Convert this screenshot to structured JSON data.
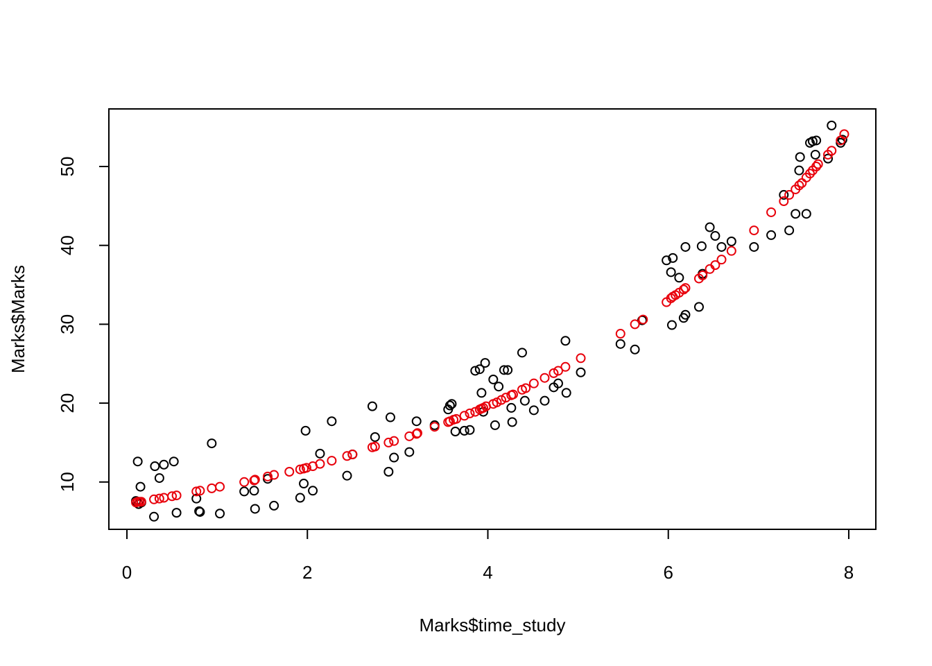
{
  "chart_data": {
    "type": "scatter",
    "title": "",
    "xlabel": "Marks$time_study",
    "ylabel": "Marks$Marks",
    "xlim": [
      -0.2,
      8.3
    ],
    "ylim": [
      4.0,
      57.3
    ],
    "xticks": [
      0,
      2,
      4,
      6,
      8
    ],
    "yticks": [
      10,
      20,
      30,
      40,
      50
    ],
    "grid": false,
    "legend": "none",
    "series": [
      {
        "color": "#000000",
        "x": [
          0.1,
          0.12,
          0.13,
          0.15,
          0.16,
          0.3,
          0.31,
          0.36,
          0.41,
          0.52,
          0.55,
          0.77,
          0.8,
          0.81,
          0.94,
          1.03,
          1.3,
          1.41,
          1.42,
          1.56,
          1.63,
          1.92,
          1.96,
          1.98,
          2.06,
          2.14,
          2.27,
          2.44,
          2.5,
          2.72,
          2.75,
          2.9,
          2.92,
          2.96,
          3.13,
          3.21,
          3.41,
          3.56,
          3.58,
          3.6,
          3.64,
          3.74,
          3.8,
          3.86,
          3.91,
          3.93,
          3.95,
          3.97,
          4.06,
          4.08,
          4.12,
          4.18,
          4.22,
          4.26,
          4.27,
          4.38,
          4.41,
          4.51,
          4.63,
          4.73,
          4.78,
          4.86,
          4.87,
          5.03,
          5.47,
          5.63,
          5.71,
          5.98,
          6.03,
          6.04,
          6.05,
          6.12,
          6.17,
          6.19,
          6.19,
          6.34,
          6.37,
          6.38,
          6.46,
          6.52,
          6.59,
          6.7,
          6.95,
          7.14,
          7.28,
          7.34,
          7.41,
          7.45,
          7.46,
          7.53,
          7.57,
          7.6,
          7.63,
          7.64,
          7.77,
          7.81,
          7.91,
          7.93
        ],
        "y": [
          7.6,
          12.6,
          7.2,
          9.4,
          7.4,
          5.6,
          12.0,
          10.5,
          12.2,
          12.6,
          6.1,
          7.9,
          6.3,
          6.2,
          14.9,
          6.0,
          8.8,
          8.9,
          6.6,
          10.4,
          7.0,
          8.0,
          9.8,
          16.5,
          8.9,
          13.6,
          17.7,
          10.8,
          13.5,
          19.6,
          15.7,
          11.3,
          18.2,
          13.1,
          13.8,
          17.7,
          17.2,
          19.2,
          19.7,
          19.9,
          16.4,
          16.5,
          16.6,
          24.1,
          24.3,
          21.3,
          18.9,
          25.1,
          23.0,
          17.2,
          22.1,
          24.2,
          24.2,
          19.4,
          17.6,
          26.4,
          20.3,
          19.1,
          20.3,
          22.0,
          22.5,
          27.9,
          21.3,
          23.9,
          27.5,
          26.8,
          30.5,
          38.1,
          36.6,
          29.9,
          38.4,
          35.9,
          30.8,
          31.2,
          39.8,
          32.2,
          39.9,
          36.4,
          42.3,
          41.2,
          39.8,
          40.5,
          39.8,
          41.3,
          46.4,
          41.9,
          44.0,
          49.5,
          51.2,
          44.0,
          53.0,
          53.2,
          51.5,
          53.3,
          51.0,
          55.2,
          53.0,
          53.4
        ]
      },
      {
        "color": "#e8000b",
        "x": [
          0.1,
          0.12,
          0.14,
          0.16,
          0.3,
          0.36,
          0.41,
          0.5,
          0.55,
          0.77,
          0.81,
          0.94,
          1.03,
          1.3,
          1.41,
          1.42,
          1.56,
          1.63,
          1.8,
          1.92,
          1.96,
          1.99,
          2.06,
          2.14,
          2.27,
          2.44,
          2.5,
          2.72,
          2.75,
          2.9,
          2.96,
          3.13,
          3.21,
          3.22,
          3.41,
          3.56,
          3.58,
          3.62,
          3.65,
          3.74,
          3.8,
          3.86,
          3.91,
          3.93,
          3.95,
          3.98,
          4.06,
          4.1,
          4.15,
          4.2,
          4.26,
          4.28,
          4.38,
          4.42,
          4.51,
          4.63,
          4.73,
          4.78,
          4.86,
          5.03,
          5.47,
          5.63,
          5.72,
          5.98,
          6.03,
          6.05,
          6.08,
          6.12,
          6.17,
          6.19,
          6.34,
          6.38,
          6.46,
          6.52,
          6.59,
          6.7,
          6.95,
          7.14,
          7.28,
          7.34,
          7.41,
          7.45,
          7.48,
          7.53,
          7.57,
          7.6,
          7.64,
          7.66,
          7.77,
          7.81,
          7.91,
          7.95
        ],
        "y": [
          7.4,
          7.5,
          7.5,
          7.5,
          7.8,
          7.9,
          8.0,
          8.2,
          8.3,
          8.8,
          8.9,
          9.2,
          9.4,
          10.0,
          10.2,
          10.3,
          10.7,
          10.9,
          11.3,
          11.6,
          11.7,
          11.8,
          12.0,
          12.3,
          12.7,
          13.3,
          13.5,
          14.4,
          14.5,
          15.0,
          15.2,
          15.8,
          16.1,
          16.2,
          17.0,
          17.6,
          17.7,
          17.9,
          18.0,
          18.4,
          18.7,
          18.9,
          19.2,
          19.3,
          19.4,
          19.6,
          19.9,
          20.1,
          20.4,
          20.7,
          21.0,
          21.1,
          21.7,
          21.9,
          22.5,
          23.2,
          23.8,
          24.1,
          24.6,
          25.7,
          28.8,
          30.0,
          30.6,
          32.8,
          33.3,
          33.5,
          33.7,
          34.0,
          34.4,
          34.6,
          35.8,
          36.2,
          37.0,
          37.5,
          38.2,
          39.3,
          41.9,
          44.2,
          45.6,
          46.4,
          47.1,
          47.6,
          47.9,
          48.6,
          49.1,
          49.5,
          50.0,
          50.3,
          51.5,
          52.0,
          53.3,
          54.1
        ]
      }
    ]
  }
}
